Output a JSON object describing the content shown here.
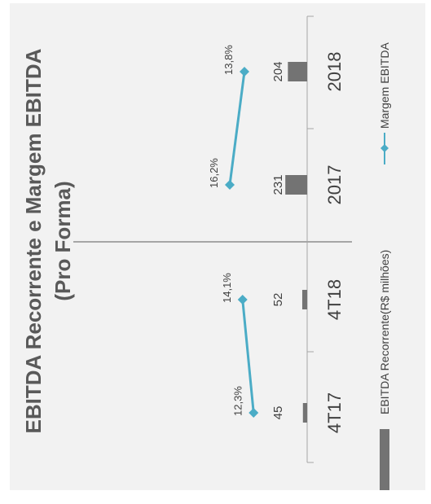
{
  "chart_data": {
    "type": "bar",
    "title": "EBITDA Recorrente e Margem EBITDA",
    "subtitle": "(Pro Forma)",
    "categories": [
      "4T17",
      "4T18",
      "2017",
      "2018"
    ],
    "series": [
      {
        "name": "EBITDA Recorrente(R$ milhões)",
        "type": "bar",
        "values": [
          45,
          52,
          231,
          204
        ],
        "labels": [
          "45",
          "52",
          "231",
          "204"
        ]
      },
      {
        "name": "Margem EBITDA",
        "type": "line",
        "values": [
          12.3,
          14.1,
          16.2,
          13.8
        ],
        "labels": [
          "12,3%",
          "14,1%",
          "16,2%",
          "13,8%"
        ],
        "segments": [
          [
            0,
            1
          ],
          [
            2,
            3
          ]
        ]
      }
    ],
    "legend_position": "bottom",
    "grid": false
  },
  "colors": {
    "bar": "#737373",
    "line": "#4bacc6",
    "axis": "#a6a6a6",
    "panel": "#f2f2f2"
  }
}
